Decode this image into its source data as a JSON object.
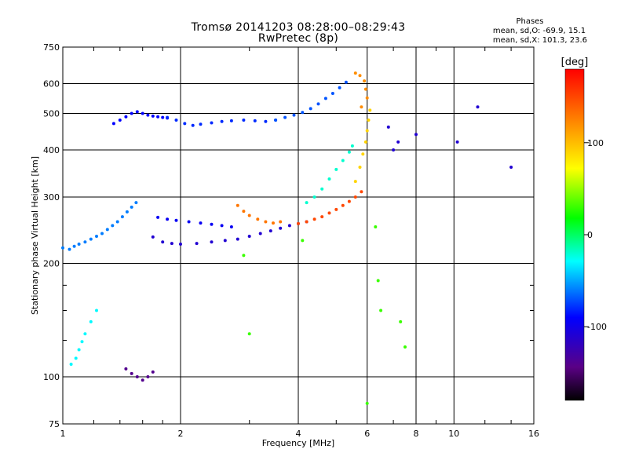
{
  "header": {
    "title_line1": "Tromsø 20141203 08:28:00–08:29:43",
    "title_line2": "RwPretec (8p)",
    "stats_title": "Phases",
    "stats_line1": "mean, sd,O: -69.9, 15.1",
    "stats_line2": "mean, sd,X: 101.3, 23.6"
  },
  "chart_data": {
    "type": "scatter",
    "xlabel": "Frequency [MHz]",
    "ylabel": "Stationary phase Virtual Height [km]",
    "x_scale": "log",
    "y_scale": "log",
    "xlim": [
      1,
      16
    ],
    "ylim": [
      75,
      750
    ],
    "x_ticks": [
      1,
      2,
      4,
      6,
      8,
      10,
      16
    ],
    "x_tick_labels": [
      "1",
      "2",
      "4",
      "6",
      "8",
      "10",
      "16"
    ],
    "x_minor_ticks": [
      1.2,
      1.4,
      1.6,
      1.8,
      3,
      5,
      7,
      9,
      12,
      14
    ],
    "y_ticks": [
      75,
      100,
      200,
      300,
      400,
      500,
      600,
      750
    ],
    "y_tick_labels": [
      "75",
      "100",
      "200",
      "300",
      "400",
      "500",
      "600",
      "750"
    ],
    "y_minor_ticks": [
      125,
      150,
      175
    ],
    "grid": true,
    "colorbar": {
      "label": "[deg]",
      "range": [
        -180,
        180
      ],
      "ticks": [
        100,
        0,
        -100
      ],
      "tick_labels": [
        "100",
        "0",
        "-100"
      ]
    },
    "series": [
      {
        "points": [
          [
            1.0,
            220
          ],
          [
            1.04,
            218
          ],
          [
            1.07,
            222
          ],
          [
            1.1,
            225
          ],
          [
            1.14,
            228
          ],
          [
            1.18,
            232
          ],
          [
            1.22,
            236
          ],
          [
            1.26,
            240
          ],
          [
            1.3,
            246
          ],
          [
            1.34,
            252
          ],
          [
            1.38,
            258
          ],
          [
            1.42,
            266
          ],
          [
            1.46,
            274
          ],
          [
            1.5,
            282
          ],
          [
            1.54,
            290
          ]
        ],
        "phase": -60
      },
      {
        "points": [
          [
            1.35,
            470
          ],
          [
            1.4,
            480
          ],
          [
            1.45,
            490
          ],
          [
            1.5,
            500
          ],
          [
            1.55,
            505
          ],
          [
            1.6,
            500
          ],
          [
            1.65,
            495
          ],
          [
            1.7,
            492
          ],
          [
            1.75,
            490
          ],
          [
            1.8,
            488
          ],
          [
            1.85,
            486
          ]
        ],
        "phase": -90
      },
      {
        "points": [
          [
            1.85,
            488
          ],
          [
            1.95,
            480
          ],
          [
            2.05,
            470
          ],
          [
            2.15,
            465
          ],
          [
            2.25,
            468
          ],
          [
            2.4,
            472
          ],
          [
            2.55,
            476
          ],
          [
            2.7,
            478
          ],
          [
            2.9,
            480
          ],
          [
            3.1,
            478
          ],
          [
            3.3,
            476
          ],
          [
            3.5,
            480
          ]
        ],
        "phase": -80
      },
      {
        "points": [
          [
            3.5,
            480
          ],
          [
            3.7,
            488
          ],
          [
            3.9,
            495
          ],
          [
            4.1,
            503
          ],
          [
            4.3,
            515
          ],
          [
            4.5,
            530
          ],
          [
            4.7,
            548
          ],
          [
            4.9,
            565
          ],
          [
            5.1,
            585
          ],
          [
            5.3,
            605
          ]
        ],
        "phase": -70
      },
      {
        "points": [
          [
            1.7,
            235
          ],
          [
            1.8,
            228
          ],
          [
            1.9,
            226
          ],
          [
            2.0,
            225
          ],
          [
            2.2,
            226
          ],
          [
            2.4,
            228
          ],
          [
            2.6,
            230
          ],
          [
            2.8,
            232
          ],
          [
            3.0,
            236
          ],
          [
            3.2,
            240
          ],
          [
            3.4,
            244
          ],
          [
            3.6,
            248
          ],
          [
            3.8,
            252
          ],
          [
            4.0,
            255
          ],
          [
            4.2,
            258
          ]
        ],
        "phase": -110
      },
      {
        "points": [
          [
            1.75,
            265
          ],
          [
            1.85,
            262
          ],
          [
            1.95,
            260
          ],
          [
            2.1,
            258
          ],
          [
            2.25,
            256
          ],
          [
            2.4,
            254
          ],
          [
            2.55,
            252
          ],
          [
            2.7,
            250
          ]
        ],
        "phase": -95
      },
      {
        "points": [
          [
            2.8,
            285
          ],
          [
            2.9,
            275
          ],
          [
            3.0,
            268
          ],
          [
            3.15,
            262
          ],
          [
            3.3,
            258
          ],
          [
            3.45,
            256
          ],
          [
            3.6,
            258
          ]
        ],
        "phase": 130
      },
      {
        "points": [
          [
            4.0,
            255
          ],
          [
            4.2,
            258
          ],
          [
            4.4,
            262
          ],
          [
            4.6,
            266
          ],
          [
            4.8,
            272
          ],
          [
            5.0,
            278
          ],
          [
            5.2,
            285
          ],
          [
            5.4,
            292
          ],
          [
            5.6,
            300
          ],
          [
            5.8,
            310
          ]
        ],
        "phase": 150
      },
      {
        "points": [
          [
            4.2,
            290
          ],
          [
            4.4,
            300
          ],
          [
            4.6,
            315
          ],
          [
            4.8,
            335
          ],
          [
            5.0,
            355
          ],
          [
            5.2,
            375
          ],
          [
            5.4,
            395
          ],
          [
            5.5,
            410
          ]
        ],
        "phase": -20
      },
      {
        "points": [
          [
            5.6,
            330
          ],
          [
            5.75,
            360
          ],
          [
            5.85,
            390
          ],
          [
            5.95,
            420
          ],
          [
            6.0,
            450
          ],
          [
            6.05,
            480
          ],
          [
            6.1,
            510
          ]
        ],
        "phase": 90
      },
      {
        "points": [
          [
            5.6,
            640
          ],
          [
            5.75,
            630
          ],
          [
            5.9,
            610
          ],
          [
            5.95,
            580
          ],
          [
            6.0,
            550
          ],
          [
            5.8,
            520
          ]
        ],
        "phase": 120
      },
      {
        "points": [
          [
            1.45,
            105
          ],
          [
            1.5,
            102
          ],
          [
            1.55,
            100
          ],
          [
            1.6,
            98
          ],
          [
            1.65,
            100
          ],
          [
            1.7,
            103
          ]
        ],
        "phase": -140
      },
      {
        "points": [
          [
            1.05,
            108
          ],
          [
            1.08,
            112
          ],
          [
            1.1,
            118
          ],
          [
            1.12,
            124
          ],
          [
            1.14,
            130
          ],
          [
            1.18,
            140
          ],
          [
            1.22,
            150
          ]
        ],
        "phase": -30
      },
      {
        "points": [
          [
            7.2,
            420
          ],
          [
            8.0,
            440
          ],
          [
            10.2,
            420
          ],
          [
            11.5,
            520
          ],
          [
            14.0,
            360
          ],
          [
            6.8,
            460
          ],
          [
            7.0,
            400
          ]
        ],
        "phase": -110
      },
      {
        "points": [
          [
            6.0,
            85
          ],
          [
            6.4,
            180
          ],
          [
            6.5,
            150
          ],
          [
            7.3,
            140
          ],
          [
            7.5,
            120
          ],
          [
            3.0,
            130
          ],
          [
            2.9,
            210
          ],
          [
            4.1,
            230
          ],
          [
            6.3,
            250
          ]
        ],
        "phase": 30
      }
    ]
  }
}
